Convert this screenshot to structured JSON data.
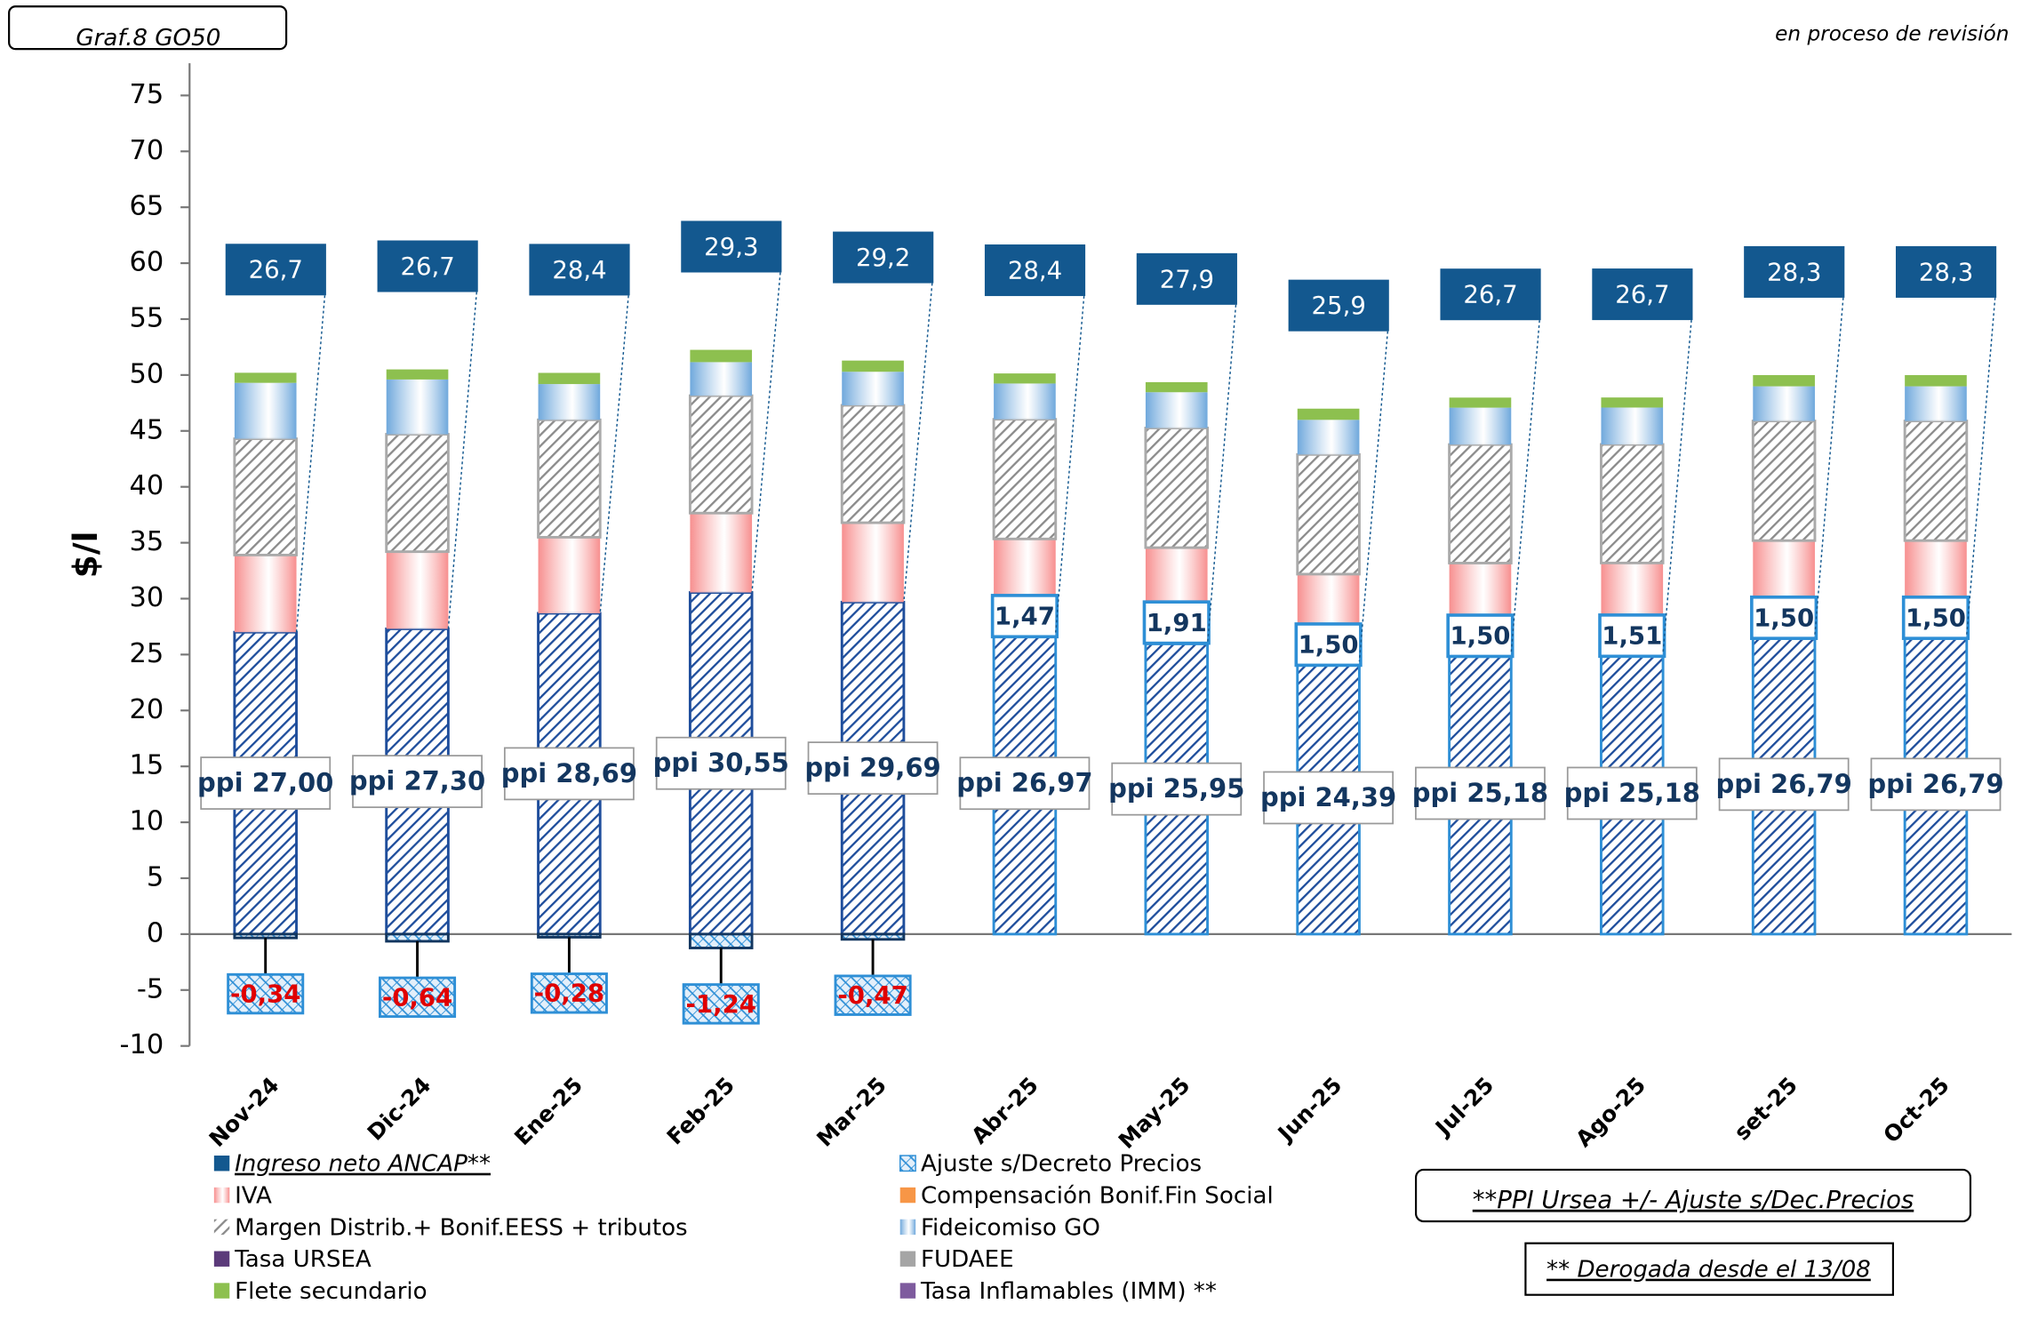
{
  "chart_data": {
    "type": "stacked-bar",
    "tag": "Graf.8  GO50",
    "subtitle": "en proceso de revisión",
    "y_label": "$/l",
    "notes": [
      "**PPI Ursea +/- Ajuste s/Dec.Precios",
      "** Derogada desde el 13/08"
    ],
    "categories": [
      "Nov-24",
      "Dic-24",
      "Ene-25",
      "Feb-25",
      "Mar-25",
      "Abr-25",
      "May-25",
      "Jun-25",
      "Jul-25",
      "Ago-25",
      "set-25",
      "Oct-25"
    ],
    "ylim": [
      -10,
      75
    ],
    "yticks": [
      -10,
      -5,
      0,
      5,
      10,
      15,
      20,
      25,
      30,
      35,
      40,
      45,
      50,
      55,
      60,
      65,
      70,
      75
    ],
    "grid": false,
    "ppi": {
      "color": "#1f4e9c",
      "style": "hatch",
      "values": [
        27.0,
        27.3,
        28.69,
        30.55,
        29.69,
        26.97,
        25.95,
        24.39,
        25.18,
        25.18,
        26.79,
        26.79
      ],
      "value_labels": [
        "ppi 27,00",
        "ppi 27,30",
        "ppi 28,69",
        "ppi 30,55",
        "ppi 29,69",
        "ppi 26,97",
        "ppi 25,95",
        "ppi 24,39",
        "ppi 25,18",
        "ppi 25,18",
        "ppi 26,79",
        "ppi 26,79"
      ]
    },
    "series": [
      {
        "name": "Ingreso neto ANCAP**",
        "color": "#13588f",
        "style": "box",
        "values": [
          26.7,
          26.7,
          28.4,
          29.3,
          29.2,
          28.4,
          27.9,
          25.9,
          26.7,
          26.7,
          28.3,
          28.3
        ],
        "value_labels": [
          "26,7",
          "26,7",
          "28,4",
          "29,3",
          "29,2",
          "28,4",
          "27,9",
          "25,9",
          "26,7",
          "26,7",
          "28,3",
          "28,3"
        ]
      },
      {
        "name": "Ajuste s/Decreto Precios",
        "color": "#2e8fd6",
        "style": "crosshatch",
        "values": [
          -0.34,
          -0.64,
          -0.28,
          -1.24,
          -0.47,
          1.47,
          1.91,
          1.5,
          1.5,
          1.51,
          1.5,
          1.5
        ],
        "value_labels": [
          "-0,34",
          "-0,64",
          "-0,28",
          "-1,24",
          "-0,47",
          "1,47",
          "1,91",
          "1,50",
          "1,50",
          "1,51",
          "1,50",
          "1,50"
        ]
      },
      {
        "name": "IVA",
        "color": "#f78f8f",
        "style": "gradient",
        "values": [
          6.9,
          6.9,
          6.8,
          7.1,
          7.1,
          6.9,
          6.7,
          6.3,
          6.5,
          6.5,
          6.9,
          6.9
        ]
      },
      {
        "name": "Compensación Bonif.Fin Social",
        "color": "#f79646",
        "style": "solid",
        "values": [
          0,
          0,
          0,
          0,
          0,
          0,
          0,
          0,
          0,
          0,
          0,
          0
        ]
      },
      {
        "name": "Margen Distrib.+ Bonif.EESS + tributos",
        "color": "#8c8c8c",
        "style": "hatch",
        "values": [
          10.4,
          10.5,
          10.5,
          10.5,
          10.5,
          10.7,
          10.7,
          10.7,
          10.6,
          10.6,
          10.7,
          10.7
        ]
      },
      {
        "name": "Fideicomiso GO",
        "color": "#6fa8dc",
        "style": "gradient",
        "values": [
          5.0,
          4.9,
          3.2,
          3.0,
          3.0,
          3.2,
          3.2,
          3.1,
          3.3,
          3.3,
          3.1,
          3.1
        ]
      },
      {
        "name": "Tasa URSEA",
        "color": "#5b3a7a",
        "style": "solid",
        "values": [
          0,
          0,
          0,
          0,
          0,
          0,
          0,
          0,
          0,
          0,
          0,
          0
        ]
      },
      {
        "name": "FUDAEE",
        "color": "#a5a5a5",
        "style": "solid",
        "values": [
          0,
          0,
          0,
          0,
          0,
          0,
          0,
          0,
          0,
          0,
          0,
          0
        ]
      },
      {
        "name": "Flete secundario",
        "color": "#8dc04f",
        "style": "solid",
        "values": [
          0.9,
          0.9,
          1.0,
          1.1,
          1.0,
          0.9,
          0.9,
          1.0,
          0.9,
          0.9,
          1.0,
          1.0
        ]
      },
      {
        "name": "Tasa Inflamables (IMM) **",
        "color": "#7e5b9e",
        "style": "solid",
        "values": [
          0,
          0,
          0,
          0,
          0,
          0,
          0,
          0,
          0,
          0,
          0,
          0
        ]
      }
    ]
  }
}
